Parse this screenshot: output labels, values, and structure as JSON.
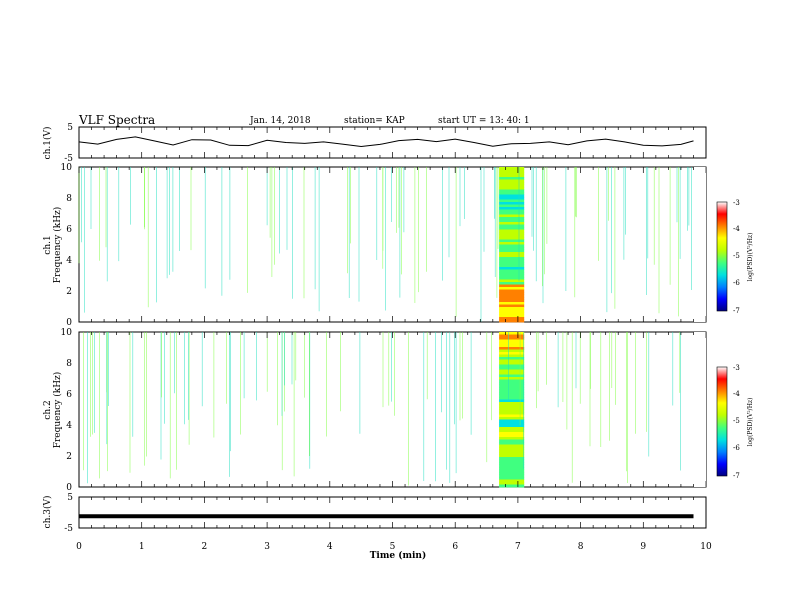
{
  "header": {
    "title": "VLF Spectra",
    "date": "Jan. 14, 2018",
    "station": "station= KAP",
    "start": "start  UT  =   13: 40: 1"
  },
  "chart_data": [
    {
      "type": "line",
      "panel": "ch1-waveform",
      "ylabel": "ch.1(V)",
      "ylim": [
        -5,
        5
      ],
      "yticks": [
        "5",
        "-5"
      ],
      "x": [
        0.0,
        0.3,
        0.6,
        0.9,
        1.2,
        1.5,
        1.8,
        2.1,
        2.4,
        2.7,
        3.0,
        3.3,
        3.6,
        3.9,
        4.2,
        4.5,
        4.8,
        5.1,
        5.4,
        5.7,
        6.0,
        6.3,
        6.6,
        6.9,
        7.2,
        7.5,
        7.8,
        8.1,
        8.4,
        8.7,
        9.0,
        9.3,
        9.6,
        9.8
      ],
      "values": [
        0.2,
        -0.5,
        1.0,
        1.8,
        0.5,
        -0.8,
        0.9,
        0.8,
        -0.9,
        -1.0,
        0.7,
        0.0,
        -0.3,
        0.2,
        -0.5,
        -1.3,
        -0.6,
        0.6,
        1.0,
        0.3,
        1.1,
        0.0,
        -1.2,
        -0.4,
        -0.3,
        0.2,
        -0.7,
        0.5,
        1.1,
        0.2,
        -0.9,
        -1.1,
        -0.6,
        0.5
      ]
    },
    {
      "type": "heatmap",
      "panel": "ch1-spectrogram",
      "ylabel_top": "ch.1",
      "ylabel_bottom": "Frequency (kHz)",
      "ylim": [
        0,
        10
      ],
      "yticks": [
        "0",
        "2",
        "4",
        "6",
        "8",
        "10"
      ],
      "burst_interval_min": [
        6.7,
        7.1
      ],
      "colorbar": {
        "label": "log(PSD)(V²/Hz)",
        "range": [
          -7,
          -3
        ],
        "ticks": [
          "-3",
          "-4",
          "-5",
          "-6",
          "-7"
        ]
      }
    },
    {
      "type": "heatmap",
      "panel": "ch2-spectrogram",
      "ylabel_top": "ch.2",
      "ylabel_bottom": "Frequency (kHz)",
      "ylim": [
        0,
        10
      ],
      "yticks": [
        "0",
        "2",
        "4",
        "6",
        "8",
        "10"
      ],
      "burst_interval_min": [
        6.7,
        7.1
      ],
      "colorbar": {
        "label": "log(PSD)(V²/Hz)",
        "range": [
          -7,
          -3
        ],
        "ticks": [
          "-3",
          "-4",
          "-5",
          "-6",
          "-7"
        ]
      }
    },
    {
      "type": "line",
      "panel": "ch3-waveform",
      "ylabel": "ch.3(V)",
      "ylim": [
        -5,
        5
      ],
      "yticks": [
        "5",
        "-5"
      ],
      "x": [
        0.0,
        9.8
      ],
      "values": [
        -1.2,
        -1.2
      ]
    }
  ],
  "xaxis": {
    "label": "Time (min)",
    "range": [
      0,
      10
    ],
    "ticks": [
      "0",
      "1",
      "2",
      "3",
      "4",
      "5",
      "6",
      "7",
      "8",
      "9",
      "10"
    ]
  },
  "colors": {
    "colormap": [
      "#000080",
      "#0000ff",
      "#0080ff",
      "#00e0e0",
      "#40ff80",
      "#c0ff00",
      "#ffff00",
      "#ff8000",
      "#ff0000",
      "#ffffff"
    ]
  }
}
